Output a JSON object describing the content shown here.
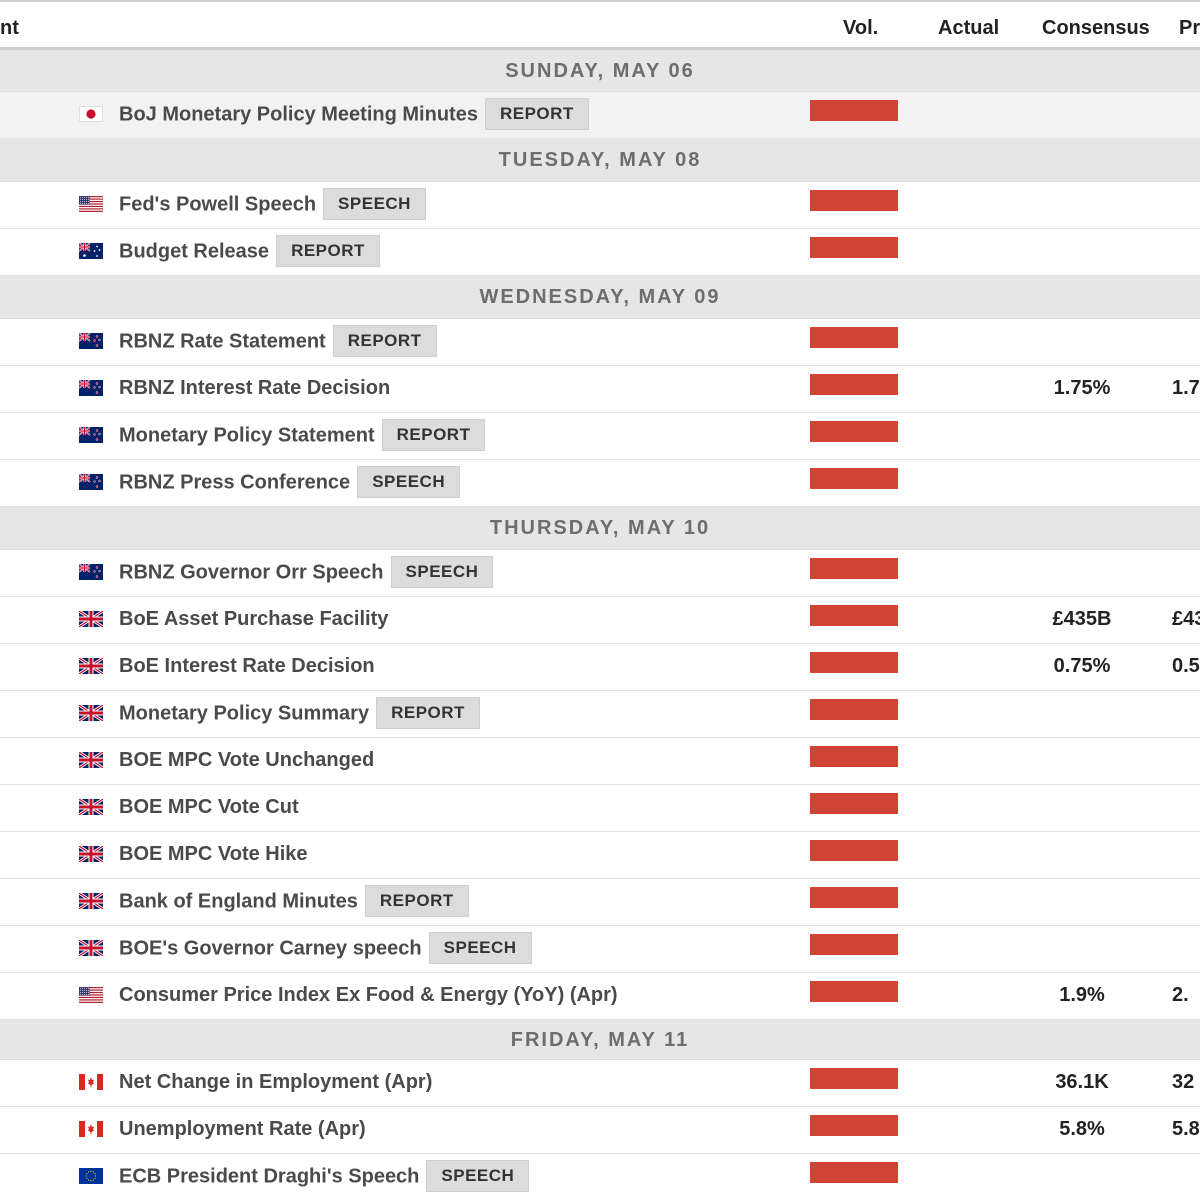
{
  "header": {
    "event": "nt",
    "vol": "Vol.",
    "actual": "Actual",
    "consensus": "Consensus",
    "previous": "Pr"
  },
  "colors": {
    "volatility_high": "#d14334",
    "day_header_bg": "#e6e6e6",
    "tag_bg": "#dcdcdc"
  },
  "days": [
    {
      "label": "SUNDAY, MAY 06",
      "events": [
        {
          "flag": "jp-flag",
          "title": "BoJ Monetary Policy Meeting Minutes",
          "tag": "REPORT",
          "volatility": "high",
          "consensus": "",
          "previous": "",
          "shaded": true
        }
      ]
    },
    {
      "label": "TUESDAY, MAY 08",
      "events": [
        {
          "flag": "us-flag",
          "title": "Fed's Powell Speech",
          "tag": "SPEECH",
          "volatility": "high",
          "consensus": "",
          "previous": ""
        },
        {
          "flag": "au-flag",
          "title": "Budget Release",
          "tag": "REPORT",
          "volatility": "high",
          "consensus": "",
          "previous": ""
        }
      ]
    },
    {
      "label": "WEDNESDAY, MAY 09",
      "events": [
        {
          "flag": "nz-flag",
          "title": "RBNZ Rate Statement",
          "tag": "REPORT",
          "volatility": "high",
          "consensus": "",
          "previous": ""
        },
        {
          "flag": "nz-flag",
          "title": "RBNZ Interest Rate Decision",
          "tag": "",
          "volatility": "high",
          "consensus": "1.75%",
          "previous": "1.7"
        },
        {
          "flag": "nz-flag",
          "title": "Monetary Policy Statement",
          "tag": "REPORT",
          "volatility": "high",
          "consensus": "",
          "previous": ""
        },
        {
          "flag": "nz-flag",
          "title": "RBNZ Press Conference",
          "tag": "SPEECH",
          "volatility": "high",
          "consensus": "",
          "previous": ""
        }
      ]
    },
    {
      "label": "THURSDAY, MAY 10",
      "events": [
        {
          "flag": "nz-flag",
          "title": "RBNZ Governor Orr Speech",
          "tag": "SPEECH",
          "volatility": "high",
          "consensus": "",
          "previous": ""
        },
        {
          "flag": "gb-flag",
          "title": "BoE Asset Purchase Facility",
          "tag": "",
          "volatility": "high",
          "consensus": "£435B",
          "previous": "£43"
        },
        {
          "flag": "gb-flag",
          "title": "BoE Interest Rate Decision",
          "tag": "",
          "volatility": "high",
          "consensus": "0.75%",
          "previous": "0.5"
        },
        {
          "flag": "gb-flag",
          "title": "Monetary Policy Summary",
          "tag": "REPORT",
          "volatility": "high",
          "consensus": "",
          "previous": ""
        },
        {
          "flag": "gb-flag",
          "title": "BOE MPC Vote Unchanged",
          "tag": "",
          "volatility": "high",
          "consensus": "",
          "previous": ""
        },
        {
          "flag": "gb-flag",
          "title": "BOE MPC Vote Cut",
          "tag": "",
          "volatility": "high",
          "consensus": "",
          "previous": ""
        },
        {
          "flag": "gb-flag",
          "title": "BOE MPC Vote Hike",
          "tag": "",
          "volatility": "high",
          "consensus": "",
          "previous": ""
        },
        {
          "flag": "gb-flag",
          "title": "Bank of England Minutes",
          "tag": "REPORT",
          "volatility": "high",
          "consensus": "",
          "previous": ""
        },
        {
          "flag": "gb-flag",
          "title": "BOE's Governor Carney speech",
          "tag": "SPEECH",
          "volatility": "high",
          "consensus": "",
          "previous": ""
        },
        {
          "flag": "us-flag",
          "title": "Consumer Price Index Ex Food & Energy (YoY) (Apr)",
          "tag": "",
          "volatility": "high",
          "consensus": "1.9%",
          "previous": "2."
        }
      ]
    },
    {
      "label": "FRIDAY, MAY 11",
      "events": [
        {
          "flag": "ca-flag",
          "title": "Net Change in Employment (Apr)",
          "tag": "",
          "volatility": "high",
          "consensus": "36.1K",
          "previous": "32"
        },
        {
          "flag": "ca-flag",
          "title": "Unemployment Rate (Apr)",
          "tag": "",
          "volatility": "high",
          "consensus": "5.8%",
          "previous": "5.8"
        },
        {
          "flag": "eu-flag",
          "title": "ECB President Draghi's Speech",
          "tag": "SPEECH",
          "volatility": "high",
          "consensus": "",
          "previous": ""
        }
      ]
    }
  ]
}
